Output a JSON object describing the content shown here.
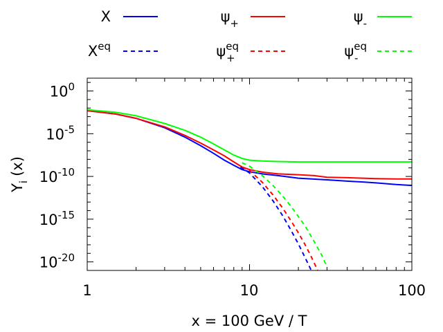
{
  "chart_data": {
    "type": "line",
    "title": "",
    "xlabel": "x = 100 GeV / T",
    "ylabel": "Y",
    "ylabel_subscript": "i",
    "ylabel_argument": "(x)",
    "x_scale": "log",
    "y_scale": "log",
    "xlim": [
      1,
      100
    ],
    "ylim_log10": [
      -21,
      1.5
    ],
    "x_tick_labels": [
      "1",
      "10",
      "100"
    ],
    "x_ticks": [
      1,
      10,
      100
    ],
    "y_tick_base": "10",
    "y_tick_exponents": [
      "0",
      "-5",
      "-10",
      "-15",
      "-20"
    ],
    "y_ticks_log10": [
      0,
      -5,
      -10,
      -15,
      -20
    ],
    "legend_position": "top, outside plot",
    "legend": [
      {
        "key": "X",
        "base": "X",
        "sub": "",
        "sup": "",
        "color": "#0000ff",
        "dash": false
      },
      {
        "key": "psi_plus",
        "base": "ψ",
        "sub": "+",
        "sup": "",
        "color": "#ff0000",
        "dash": false
      },
      {
        "key": "psi_minus",
        "base": "ψ",
        "sub": "-",
        "sup": "",
        "color": "#00ff00",
        "dash": false
      },
      {
        "key": "X_eq",
        "base": "X",
        "sub": "",
        "sup": "eq",
        "color": "#0000ff",
        "dash": true
      },
      {
        "key": "psi_plus_eq",
        "base": "ψ",
        "sub": "+",
        "sup": "eq",
        "color": "#ff0000",
        "dash": true
      },
      {
        "key": "psi_minus_eq",
        "base": "ψ",
        "sub": "-",
        "sup": "eq",
        "color": "#00ff00",
        "dash": true
      }
    ],
    "series": [
      {
        "key": "X",
        "color": "#0000ff",
        "dash": false,
        "x": [
          1,
          1.5,
          2,
          3,
          4,
          5,
          6,
          7,
          8,
          9,
          10,
          12,
          15,
          20,
          30,
          40,
          50,
          60,
          80,
          100
        ],
        "log10_y": [
          -2.3,
          -2.7,
          -3.2,
          -4.3,
          -5.4,
          -6.4,
          -7.3,
          -8.1,
          -8.7,
          -9.2,
          -9.45,
          -9.7,
          -9.9,
          -10.2,
          -10.4,
          -10.55,
          -10.65,
          -10.75,
          -10.95,
          -11.05
        ]
      },
      {
        "key": "psi_plus",
        "color": "#ff0000",
        "dash": false,
        "x": [
          1,
          1.5,
          2,
          3,
          4,
          5,
          6,
          7,
          8,
          9,
          10,
          12,
          15,
          20,
          25,
          30,
          40,
          50,
          60,
          80,
          100
        ],
        "log10_y": [
          -2.3,
          -2.7,
          -3.2,
          -4.2,
          -5.2,
          -6.1,
          -6.9,
          -7.6,
          -8.3,
          -8.9,
          -9.2,
          -9.5,
          -9.7,
          -9.8,
          -9.9,
          -10.1,
          -10.15,
          -10.2,
          -10.25,
          -10.3,
          -10.3
        ]
      },
      {
        "key": "psi_minus",
        "color": "#00ff00",
        "dash": false,
        "x": [
          1,
          1.5,
          2,
          3,
          4,
          5,
          6,
          7,
          8,
          9,
          10,
          12,
          15,
          20,
          30,
          50,
          100
        ],
        "log10_y": [
          -2.2,
          -2.5,
          -2.9,
          -3.8,
          -4.6,
          -5.4,
          -6.2,
          -6.9,
          -7.5,
          -7.9,
          -8.1,
          -8.2,
          -8.25,
          -8.3,
          -8.3,
          -8.3,
          -8.3
        ]
      },
      {
        "key": "X_eq",
        "color": "#0000ff",
        "dash": true,
        "x": [
          8.8,
          10,
          12,
          14,
          16,
          18,
          20,
          22,
          24,
          25
        ],
        "log10_y": [
          -8.9,
          -9.6,
          -11.2,
          -12.9,
          -14.6,
          -16.3,
          -17.9,
          -19.5,
          -21.0,
          -21.8
        ]
      },
      {
        "key": "psi_plus_eq",
        "color": "#ff0000",
        "dash": true,
        "x": [
          9,
          10,
          12,
          14,
          16,
          18,
          20,
          22,
          24,
          26,
          27
        ],
        "log10_y": [
          -8.9,
          -9.3,
          -10.7,
          -12.2,
          -13.7,
          -15.2,
          -16.6,
          -18.0,
          -19.4,
          -20.8,
          -21.5
        ]
      },
      {
        "key": "psi_minus_eq",
        "color": "#00ff00",
        "dash": true,
        "x": [
          9,
          10,
          12,
          14,
          16,
          18,
          20,
          22,
          25,
          28,
          30
        ],
        "log10_y": [
          -8.4,
          -8.8,
          -9.9,
          -11.1,
          -12.3,
          -13.5,
          -14.7,
          -15.8,
          -17.6,
          -19.3,
          -20.6
        ]
      }
    ]
  }
}
